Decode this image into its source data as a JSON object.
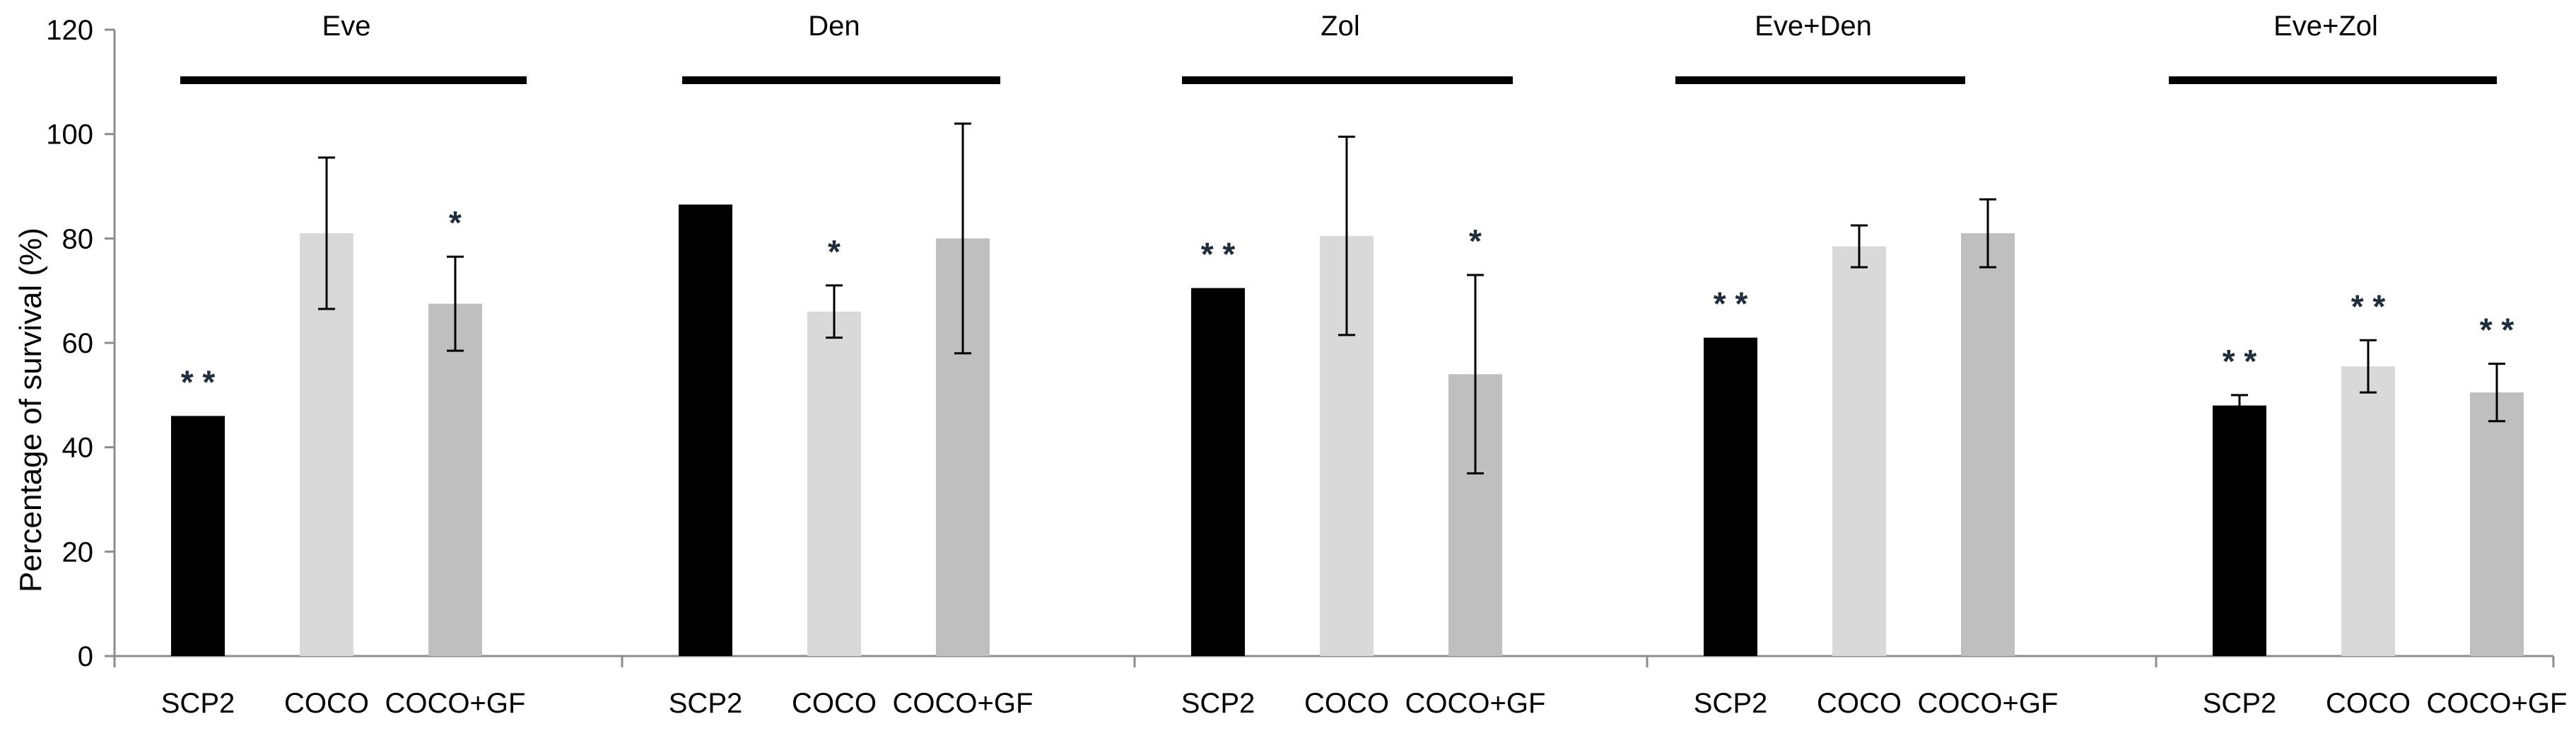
{
  "chart_data": {
    "type": "bar",
    "ylabel": "Percentage of  survival (%)",
    "xlabel": "",
    "ylim": [
      0,
      120
    ],
    "yticks": [
      "0",
      "20",
      "40",
      "60",
      "80",
      "100",
      "120"
    ],
    "series_colors": {
      "SCP2": "#000000",
      "COCO": "#d9d9d9",
      "COCO+GF": "#bfbfbf"
    },
    "groups": [
      {
        "title": "Eve",
        "bars": [
          {
            "label": "SCP2",
            "value": 46,
            "err": 0,
            "sig": "**"
          },
          {
            "label": "COCO",
            "value": 81,
            "err": 14.5,
            "sig": ""
          },
          {
            "label": "COCO+GF",
            "value": 67.5,
            "err": 9,
            "sig": "*"
          }
        ]
      },
      {
        "title": "Den",
        "bars": [
          {
            "label": "SCP2",
            "value": 86.5,
            "err": 0,
            "sig": ""
          },
          {
            "label": "COCO",
            "value": 66,
            "err": 5,
            "sig": "*"
          },
          {
            "label": "COCO+GF",
            "value": 80,
            "err": 22,
            "sig": ""
          }
        ]
      },
      {
        "title": "Zol",
        "bars": [
          {
            "label": "SCP2",
            "value": 70.5,
            "err": 0,
            "sig": "**"
          },
          {
            "label": "COCO",
            "value": 80.5,
            "err": 19,
            "sig": ""
          },
          {
            "label": "COCO+GF",
            "value": 54,
            "err": 19,
            "sig": "*"
          }
        ]
      },
      {
        "title": "Eve+Den",
        "bars": [
          {
            "label": "SCP2",
            "value": 61,
            "err": 0,
            "sig": "**"
          },
          {
            "label": "COCO",
            "value": 78.5,
            "err": 4,
            "sig": ""
          },
          {
            "label": "COCO+GF",
            "value": 81,
            "err": 6.5,
            "sig": ""
          }
        ]
      },
      {
        "title": "Eve+Zol",
        "bars": [
          {
            "label": "SCP2",
            "value": 48,
            "err": 2,
            "sig": "**"
          },
          {
            "label": "COCO",
            "value": 55.5,
            "err": 5,
            "sig": "**"
          },
          {
            "label": "COCO+GF",
            "value": 50.5,
            "err": 5.5,
            "sig": "**"
          }
        ]
      }
    ]
  }
}
